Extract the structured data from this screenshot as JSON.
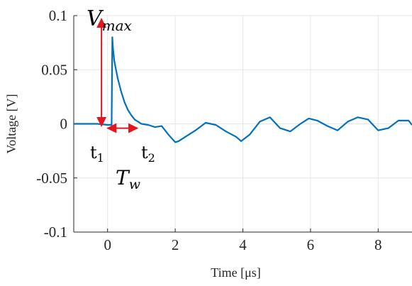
{
  "chart_data": {
    "type": "line",
    "xlabel": "Time [μs]",
    "ylabel": "Voltage [V]",
    "xlim": [
      -1,
      9
    ],
    "ylim": [
      -0.1,
      0.1
    ],
    "grid": true,
    "xticks": [
      0,
      2,
      4,
      6,
      8
    ],
    "yticks": [
      -0.1,
      -0.05,
      0,
      0.05,
      0.1
    ],
    "xtick_labels": [
      "0",
      "2",
      "4",
      "6",
      "8"
    ],
    "ytick_labels": [
      "-0.1",
      "-0.05",
      "0",
      "0.05",
      "0.1"
    ],
    "series": [
      {
        "color": "#0072bd",
        "x": [
          -1.0,
          -0.6,
          -0.3,
          0.0,
          0.12,
          0.14,
          0.16,
          0.2,
          0.3,
          0.4,
          0.5,
          0.6,
          0.7,
          0.8,
          0.9,
          1.0,
          1.2,
          1.4,
          1.6,
          1.8,
          2.0,
          2.1,
          2.3,
          2.6,
          2.9,
          3.2,
          3.5,
          3.8,
          3.95,
          4.2,
          4.5,
          4.8,
          5.1,
          5.4,
          5.7,
          5.95,
          6.2,
          6.5,
          6.8,
          7.1,
          7.4,
          7.7,
          8.0,
          8.3,
          8.6,
          8.9,
          9.0
        ],
        "y": [
          0.0,
          0.0,
          0.0,
          -0.001,
          -0.001,
          0.08,
          0.07,
          0.058,
          0.042,
          0.03,
          0.02,
          0.013,
          0.008,
          0.004,
          0.002,
          0.0,
          -0.001,
          -0.003,
          -0.002,
          -0.01,
          -0.017,
          -0.016,
          -0.012,
          -0.006,
          0.001,
          -0.001,
          -0.007,
          -0.012,
          -0.016,
          -0.01,
          0.002,
          0.006,
          -0.004,
          -0.007,
          0.0,
          0.005,
          0.003,
          -0.002,
          -0.006,
          0.002,
          0.006,
          0.004,
          -0.006,
          -0.004,
          0.003,
          0.003,
          -0.001
        ]
      }
    ],
    "annotations": {
      "vmax": {
        "base": "V",
        "sub": "max",
        "color": "#e8141b"
      },
      "t1": {
        "base": "t",
        "sub": "1"
      },
      "t2": {
        "base": "t",
        "sub": "2"
      },
      "tw": {
        "base": "T",
        "sub": "w",
        "color": "#e8141b"
      }
    }
  }
}
